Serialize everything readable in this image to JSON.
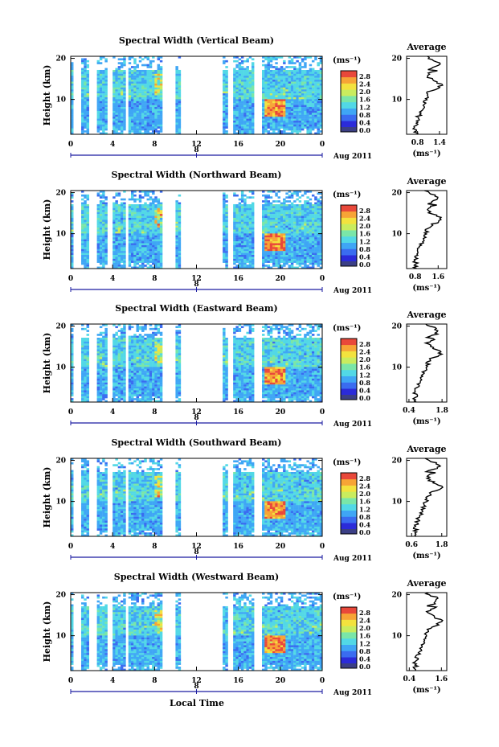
{
  "figure": {
    "xlabel": "Local Time",
    "date_tick": "8",
    "date_label": "Aug 2011",
    "colorbar_unit": "(ms⁻¹)",
    "colorbar_ticks": [
      "2.8",
      "2.4",
      "2.0",
      "1.6",
      "1.2",
      "0.8",
      "0.4",
      "0.0"
    ],
    "colormap": [
      "#2b2bd9",
      "#3a6cf0",
      "#3fa6f5",
      "#52d8e6",
      "#7ae6a8",
      "#c9ec5e",
      "#f3e23e",
      "#f7a436",
      "#e9483a"
    ],
    "zero_color": "#3b3f86",
    "avg_title": "Average",
    "avg_unit": "(ms⁻¹)"
  },
  "chart_data": [
    {
      "type": "heatmap",
      "title": "Spectral Width (Vertical Beam)",
      "xlabel": "Local Time",
      "ylabel": "Height (km)",
      "x_ticks": [
        "0",
        "4",
        "8",
        "12",
        "16",
        "20",
        "0"
      ],
      "xlim": [
        0,
        24
      ],
      "y_ticks": [
        "20",
        "10"
      ],
      "ylim": [
        1.5,
        20.5
      ],
      "zlim": [
        0.0,
        2.8
      ],
      "avg": {
        "title": "Average",
        "xlabel": "(ms⁻¹)",
        "x_ticks": [
          "0.8",
          "1.4"
        ],
        "xlim": [
          0.5,
          1.6
        ],
        "y_ticks": [
          "20",
          "10"
        ]
      }
    },
    {
      "type": "heatmap",
      "title": "Spectral Width (Northward Beam)",
      "xlabel": "Local Time",
      "ylabel": "Height (km)",
      "x_ticks": [
        "0",
        "4",
        "8",
        "12",
        "16",
        "20",
        "0"
      ],
      "xlim": [
        0,
        24
      ],
      "y_ticks": [
        "20",
        "10"
      ],
      "ylim": [
        1.5,
        20.5
      ],
      "zlim": [
        0.0,
        2.8
      ],
      "avg": {
        "title": "Average",
        "xlabel": "(ms⁻¹)",
        "x_ticks": [
          "0.8",
          "1.6"
        ],
        "xlim": [
          0.5,
          1.9
        ],
        "y_ticks": [
          "20",
          "10"
        ]
      }
    },
    {
      "type": "heatmap",
      "title": "Spectral Width (Eastward Beam)",
      "xlabel": "Local Time",
      "ylabel": "Height (km)",
      "x_ticks": [
        "0",
        "4",
        "8",
        "12",
        "16",
        "20",
        "0"
      ],
      "xlim": [
        0,
        24
      ],
      "y_ticks": [
        "20",
        "10"
      ],
      "ylim": [
        1.5,
        20.5
      ],
      "zlim": [
        0.0,
        2.8
      ],
      "avg": {
        "title": "Average",
        "xlabel": "(ms⁻¹)",
        "x_ticks": [
          "0.4",
          "1.8"
        ],
        "xlim": [
          0.3,
          2.0
        ],
        "y_ticks": [
          "20",
          "10"
        ]
      }
    },
    {
      "type": "heatmap",
      "title": "Spectral Width (Southward Beam)",
      "xlabel": "Local Time",
      "ylabel": "Height (km)",
      "x_ticks": [
        "0",
        "4",
        "8",
        "12",
        "16",
        "20",
        "0"
      ],
      "xlim": [
        0,
        24
      ],
      "y_ticks": [
        "20",
        "10"
      ],
      "ylim": [
        1.5,
        20.5
      ],
      "zlim": [
        0.0,
        2.8
      ],
      "avg": {
        "title": "Average",
        "xlabel": "(ms⁻¹)",
        "x_ticks": [
          "0.6",
          "1.8"
        ],
        "xlim": [
          0.4,
          2.0
        ],
        "y_ticks": [
          "20",
          "10"
        ]
      }
    },
    {
      "type": "heatmap",
      "title": "Spectral Width (Westward Beam)",
      "xlabel": "Local Time",
      "ylabel": "Height (km)",
      "x_ticks": [
        "0",
        "4",
        "8",
        "12",
        "16",
        "20",
        "0"
      ],
      "xlim": [
        0,
        24
      ],
      "y_ticks": [
        "20",
        "10"
      ],
      "ylim": [
        1.5,
        20.5
      ],
      "zlim": [
        0.0,
        2.8
      ],
      "avg": {
        "title": "Average",
        "xlabel": "(ms⁻¹)",
        "x_ticks": [
          "0.4",
          "1.6"
        ],
        "xlim": [
          0.3,
          1.8
        ],
        "y_ticks": [
          "20",
          "10"
        ]
      }
    }
  ]
}
